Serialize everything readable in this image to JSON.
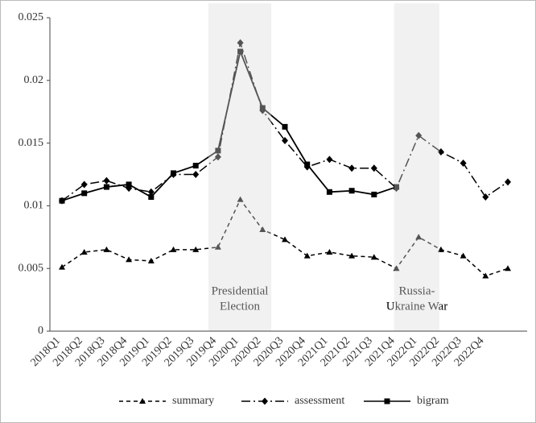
{
  "chart_data": {
    "type": "line",
    "categories": [
      "2018Q1",
      "2018Q2",
      "2018Q3",
      "2018Q4",
      "2019Q1",
      "2019Q2",
      "2019Q3",
      "2019Q4",
      "2020Q1",
      "2020Q2",
      "2020Q3",
      "2020Q4",
      "2021Q1",
      "2021Q2",
      "2021Q3",
      "2021Q4",
      "2022Q1",
      "2022Q2",
      "2022Q3",
      "2022Q4",
      null
    ],
    "series": [
      {
        "name": "summary",
        "color": "#000000",
        "values": [
          0.0051,
          0.0063,
          0.0065,
          0.0057,
          0.0056,
          0.0065,
          0.0065,
          0.0067,
          0.0105,
          0.0081,
          0.0073,
          0.006,
          0.0063,
          0.006,
          0.0059,
          0.005,
          0.0075,
          0.0065,
          0.006,
          0.0044,
          0.005
        ]
      },
      {
        "name": "assessment",
        "color": "#000000",
        "values": [
          0.0104,
          0.0117,
          0.012,
          0.0114,
          0.0111,
          0.0125,
          0.0125,
          0.0139,
          0.023,
          0.0176,
          0.0152,
          0.0131,
          0.0137,
          0.013,
          0.013,
          0.0114,
          0.0156,
          0.0143,
          0.0134,
          0.0107,
          0.0119
        ]
      },
      {
        "name": "bigram",
        "color": "#000000",
        "values": [
          0.0104,
          0.011,
          0.0115,
          0.0117,
          0.0107,
          0.0126,
          0.0132,
          0.0144,
          0.0223,
          0.0178,
          0.0163,
          0.0133,
          0.0111,
          0.0112,
          0.0109,
          0.0115,
          null,
          null,
          null,
          null,
          null
        ]
      }
    ],
    "annotations": [
      {
        "lines": [
          "Presidential",
          "Election"
        ]
      },
      {
        "lines": [
          "Russia-",
          "Ukraine  War"
        ]
      }
    ],
    "ylim": [
      0,
      0.025
    ],
    "yticks": [
      0,
      0.005,
      0.01,
      0.015,
      0.02,
      0.025
    ],
    "grid": false,
    "legend": "bottom"
  }
}
